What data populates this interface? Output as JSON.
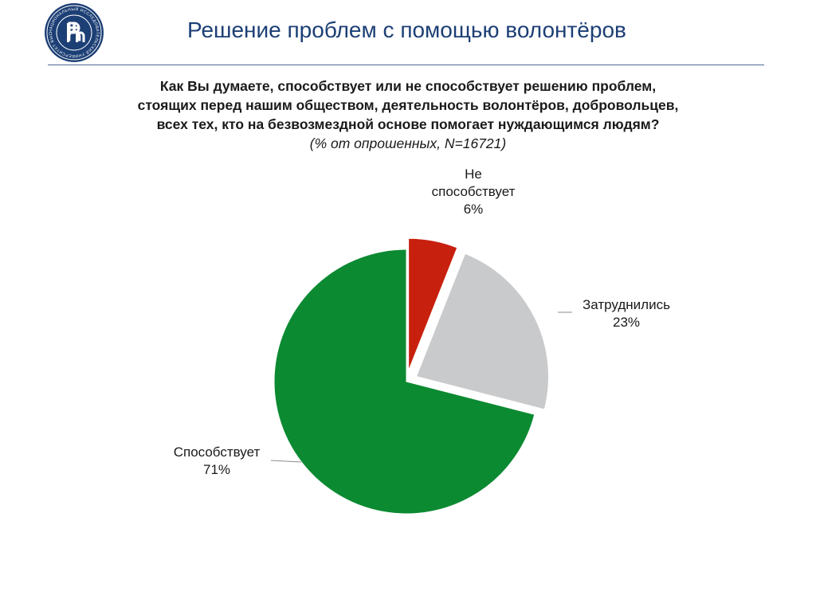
{
  "header": {
    "title": "Решение проблем с помощью волонтёров",
    "logo_icon": "hse-university-seal-icon",
    "logo_text": "НАЦИОНАЛЬНЫЙ ИССЛЕДОВАТЕЛЬСКИЙ УНИВЕРСИТЕТ ВЫСШАЯ ШКОЛА ЭКОНОМИКИ"
  },
  "question": {
    "lines": [
      "Как Вы думаете, способствует или не способствует решению проблем,",
      "стоящих перед нашим обществом, деятельность волонтёров, добровольцев,",
      "всех тех, кто на безвозмездной основе помогает нуждающимся людям?"
    ],
    "subtitle": "(% от опрошенных, N=16721)"
  },
  "colors": {
    "title": "#1c3f75",
    "rule": "#4a6a95"
  },
  "chart_data": {
    "type": "pie",
    "slices": [
      {
        "label": "Не способствует",
        "value": 6,
        "display": "6%",
        "color": "#c8200e",
        "exploded": true
      },
      {
        "label": "Затруднились",
        "value": 23,
        "display": "23%",
        "color": "#c9cacc",
        "exploded": true
      },
      {
        "label": "Способствует",
        "value": 71,
        "display": "71%",
        "color": "#0c8a32",
        "exploded": false
      }
    ],
    "start": "12 o'clock",
    "direction": "clockwise",
    "labels": [
      {
        "lines": [
          "Не",
          "способствует",
          "6%"
        ]
      },
      {
        "lines": [
          "Затруднились",
          "23%"
        ]
      },
      {
        "lines": [
          "Способствует",
          "71%"
        ]
      }
    ],
    "legend": "none"
  }
}
